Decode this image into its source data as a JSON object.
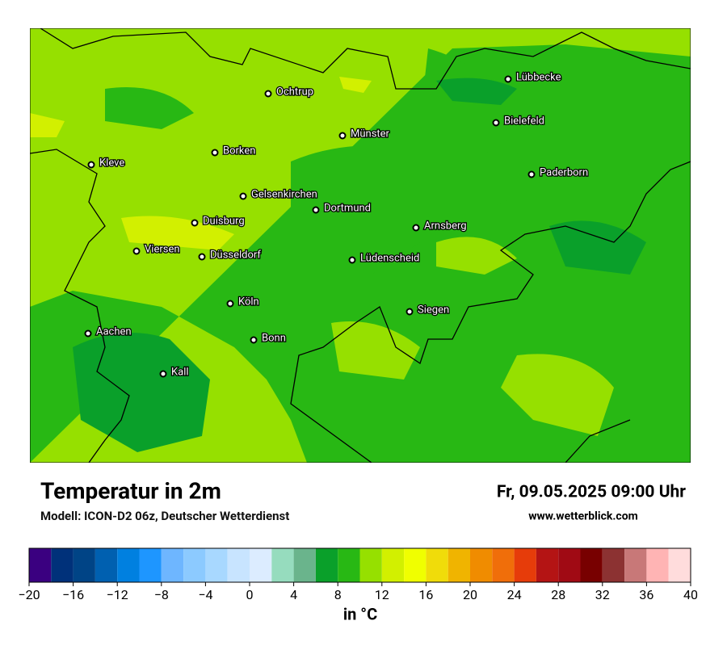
{
  "map": {
    "cities": [
      "Ochtrup",
      "Lübbecke",
      "Bielefeld",
      "Münster",
      "Borken",
      "Kleve",
      "Paderborn",
      "Gelsenkirchen",
      "Dortmund",
      "Duisburg",
      "Arnsberg",
      "Viersen",
      "Düsseldorf",
      "Lüdenscheid",
      "Köln",
      "Siegen",
      "Aachen",
      "Bonn",
      "Kall"
    ]
  },
  "header": {
    "title": "Temperatur in 2m",
    "subtitle": "Modell: ICON-D2 06z, Deutscher Wetterdienst",
    "datetime": "Fr, 09.05.2025 09:00 Uhr",
    "source": "www.wetterblick.com"
  },
  "colorbar": {
    "label": "in °C",
    "bounds": [
      -20,
      -18,
      -16,
      -14,
      -12,
      -10,
      -8,
      -6,
      -4,
      -2,
      0,
      2,
      4,
      6,
      8,
      10,
      12,
      14,
      16,
      18,
      20,
      22,
      24,
      26,
      28,
      30,
      32,
      34,
      36,
      38,
      40
    ],
    "colors": [
      "#3a0080",
      "#00317a",
      "#004486",
      "#0060b0",
      "#0080e0",
      "#1e96ff",
      "#6eb6ff",
      "#8ccaff",
      "#a8d8ff",
      "#c8e4ff",
      "#dcecff",
      "#96dcbe",
      "#6ab48c",
      "#0aa02a",
      "#28b814",
      "#96e000",
      "#d2f000",
      "#f0ff00",
      "#f0dc0a",
      "#f0b400",
      "#f08c00",
      "#f06e0a",
      "#e63c0a",
      "#b41414",
      "#a00a14",
      "#780000",
      "#8c3232",
      "#c87878",
      "#ffb4b4",
      "#ffdcdc"
    ],
    "ticks": [
      {
        "value": -20,
        "label": "−20"
      },
      {
        "value": -16,
        "label": "−16"
      },
      {
        "value": -12,
        "label": "−12"
      },
      {
        "value": -8,
        "label": "−8"
      },
      {
        "value": -4,
        "label": "−4"
      },
      0,
      4,
      8,
      12,
      16,
      20,
      24,
      28,
      32,
      36,
      40
    ]
  }
}
